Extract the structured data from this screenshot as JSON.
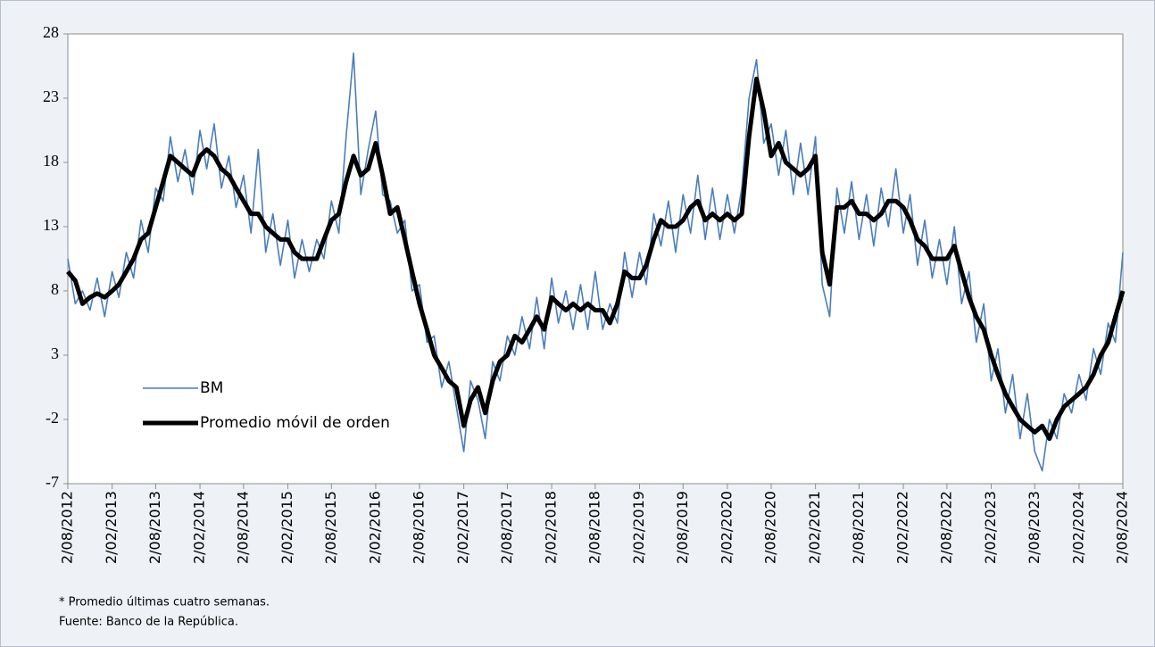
{
  "chart_data": {
    "type": "line",
    "notes": [
      "* Promedio últimas cuatro semanas.",
      "Fuente: Banco de la República."
    ],
    "x": [
      "2/08/2012",
      "2/09/2012",
      "2/10/2012",
      "2/11/2012",
      "2/12/2012",
      "2/01/2013",
      "2/02/2013",
      "2/03/2013",
      "2/04/2013",
      "2/05/2013",
      "2/06/2013",
      "2/07/2013",
      "2/08/2013",
      "2/09/2013",
      "2/10/2013",
      "2/11/2013",
      "2/12/2013",
      "2/01/2014",
      "2/02/2014",
      "2/03/2014",
      "2/04/2014",
      "2/05/2014",
      "2/06/2014",
      "2/07/2014",
      "2/08/2014",
      "2/09/2014",
      "2/10/2014",
      "2/11/2014",
      "2/12/2014",
      "2/01/2015",
      "2/02/2015",
      "2/03/2015",
      "2/04/2015",
      "2/05/2015",
      "2/06/2015",
      "2/07/2015",
      "2/08/2015",
      "2/09/2015",
      "2/10/2015",
      "2/11/2015",
      "2/12/2015",
      "2/01/2016",
      "2/02/2016",
      "2/03/2016",
      "2/04/2016",
      "2/05/2016",
      "2/06/2016",
      "2/07/2016",
      "2/08/2016",
      "2/09/2016",
      "2/10/2016",
      "2/11/2016",
      "2/12/2016",
      "2/01/2017",
      "2/02/2017",
      "2/03/2017",
      "2/04/2017",
      "2/05/2017",
      "2/06/2017",
      "2/07/2017",
      "2/08/2017",
      "2/09/2017",
      "2/10/2017",
      "2/11/2017",
      "2/12/2017",
      "2/01/2018",
      "2/02/2018",
      "2/03/2018",
      "2/04/2018",
      "2/05/2018",
      "2/06/2018",
      "2/07/2018",
      "2/08/2018",
      "2/09/2018",
      "2/10/2018",
      "2/11/2018",
      "2/12/2018",
      "2/01/2019",
      "2/02/2019",
      "2/03/2019",
      "2/04/2019",
      "2/05/2019",
      "2/06/2019",
      "2/07/2019",
      "2/08/2019",
      "2/09/2019",
      "2/10/2019",
      "2/11/2019",
      "2/12/2019",
      "2/01/2020",
      "2/02/2020",
      "2/03/2020",
      "2/04/2020",
      "2/05/2020",
      "2/06/2020",
      "2/07/2020",
      "2/08/2020",
      "2/09/2020",
      "2/10/2020",
      "2/11/2020",
      "2/12/2020",
      "2/01/2021",
      "2/02/2021",
      "2/03/2021",
      "2/04/2021",
      "2/05/2021",
      "2/06/2021",
      "2/07/2021",
      "2/08/2021",
      "2/09/2021",
      "2/10/2021",
      "2/11/2021",
      "2/12/2021",
      "2/01/2022",
      "2/02/2022",
      "2/03/2022",
      "2/04/2022",
      "2/05/2022",
      "2/06/2022",
      "2/07/2022",
      "2/08/2022",
      "2/09/2022",
      "2/10/2022",
      "2/11/2022",
      "2/12/2022",
      "2/01/2023",
      "2/02/2023",
      "2/03/2023",
      "2/04/2023",
      "2/05/2023",
      "2/06/2023",
      "2/07/2023",
      "2/08/2023",
      "2/09/2023",
      "2/10/2023",
      "2/11/2023",
      "2/12/2023",
      "2/01/2024",
      "2/02/2024",
      "2/03/2024",
      "2/04/2024",
      "2/05/2024",
      "2/06/2024",
      "2/07/2024",
      "2/08/2024"
    ],
    "xticks": [
      "2/08/2012",
      "2/02/2013",
      "2/08/2013",
      "2/02/2014",
      "2/08/2014",
      "2/02/2015",
      "2/08/2015",
      "2/02/2016",
      "2/08/2016",
      "2/02/2017",
      "2/08/2017",
      "2/02/2018",
      "2/08/2018",
      "2/02/2019",
      "2/08/2019",
      "2/02/2020",
      "2/08/2020",
      "2/02/2021",
      "2/08/2021",
      "2/02/2022",
      "2/08/2022",
      "2/02/2023",
      "2/08/2023",
      "2/02/2024",
      "2/08/2024"
    ],
    "series": [
      {
        "name": "BM",
        "color": "#4a7ebb",
        "width": 1.6,
        "values": [
          10.5,
          7,
          8,
          6.5,
          9,
          6,
          9.5,
          7.5,
          11,
          9,
          13.5,
          11,
          16,
          15,
          20,
          16.5,
          19,
          15.5,
          20.5,
          17.5,
          21,
          16,
          18.5,
          14.5,
          17,
          12.5,
          19,
          11,
          14,
          10,
          13.5,
          9,
          12,
          9.5,
          12,
          10.5,
          15,
          12.5,
          20,
          26.5,
          15.5,
          19,
          22,
          15.5,
          15,
          12.5,
          13.5,
          8,
          8.5,
          4,
          4.5,
          0.5,
          2.5,
          -1,
          -4.5,
          1,
          -0.5,
          -3.5,
          2.5,
          1,
          4.5,
          3,
          6,
          3.5,
          7.5,
          3.5,
          9,
          5.5,
          8,
          5,
          8.5,
          5,
          9.5,
          5,
          7,
          5.5,
          11,
          7.5,
          11,
          8.5,
          14,
          11.5,
          15,
          11,
          15.5,
          12.5,
          17,
          12,
          16,
          12,
          15.5,
          12.5,
          16,
          23,
          26,
          19.5,
          21,
          17,
          20.5,
          15.5,
          19.5,
          15.5,
          20,
          8.5,
          6,
          16,
          12.5,
          16.5,
          12,
          15.5,
          11.5,
          16,
          13,
          17.5,
          12.5,
          15.5,
          10,
          13.5,
          9,
          12,
          8.5,
          13,
          7,
          9.5,
          4,
          7,
          1,
          3.5,
          -1.5,
          1.5,
          -3.5,
          0,
          -4.5,
          -6,
          -2,
          -3.5,
          0,
          -1.5,
          1.5,
          -0.5,
          3.5,
          1.5,
          5.5,
          4,
          11
        ]
      },
      {
        "name": "Promedio móvil de orden",
        "color": "#000000",
        "width": 5,
        "values": [
          9.5,
          8.8,
          7,
          7.5,
          7.8,
          7.5,
          8,
          8.5,
          9.5,
          10.5,
          12,
          12.5,
          14.5,
          16.5,
          18.5,
          18,
          17.5,
          17,
          18.5,
          19,
          18.5,
          17.5,
          17,
          16,
          15,
          14,
          14,
          13,
          12.5,
          12,
          12,
          11,
          10.5,
          10.5,
          10.5,
          12,
          13.5,
          14,
          16.5,
          18.5,
          17,
          17.5,
          19.5,
          17,
          14,
          14.5,
          12,
          9.5,
          7,
          5,
          3,
          2,
          1,
          0.5,
          -2.5,
          -0.5,
          0.5,
          -1.5,
          1,
          2.5,
          3,
          4.5,
          4,
          5,
          6,
          5,
          7.5,
          7,
          6.5,
          7,
          6.5,
          7,
          6.5,
          6.5,
          5.5,
          7,
          9.5,
          9,
          9,
          10,
          12,
          13.5,
          13,
          13,
          13.5,
          14.5,
          15,
          13.5,
          14,
          13.5,
          14,
          13.5,
          14,
          20,
          24.5,
          22,
          18.5,
          19.5,
          18,
          17.5,
          17,
          17.5,
          18.5,
          11,
          8.5,
          14.5,
          14.5,
          15,
          14,
          14,
          13.5,
          14,
          15,
          15,
          14.5,
          13.5,
          12,
          11.5,
          10.5,
          10.5,
          10.5,
          11.5,
          9.5,
          7.5,
          6,
          5,
          3,
          1.5,
          0,
          -1,
          -2,
          -2.5,
          -3,
          -2.5,
          -3.5,
          -2,
          -1,
          -0.5,
          0,
          0.5,
          1.5,
          3,
          4,
          6,
          8
        ]
      }
    ],
    "ylim": [
      -7,
      28
    ],
    "yticks": [
      -7,
      -2,
      3,
      8,
      13,
      18,
      23,
      28
    ]
  }
}
